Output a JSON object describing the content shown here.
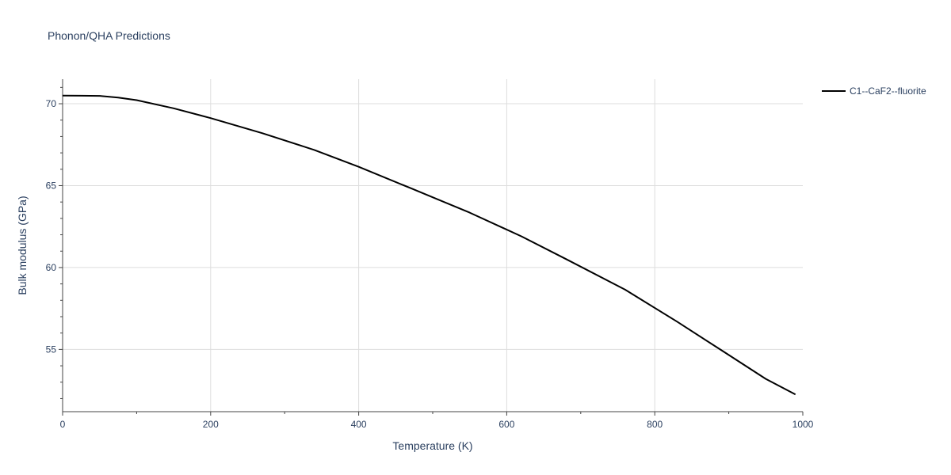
{
  "chart_data": {
    "type": "line",
    "title": "Phonon/QHA Predictions",
    "xlabel": "Temperature (K)",
    "ylabel": "Bulk modulus (GPa)",
    "xlim": [
      0,
      1000
    ],
    "ylim": [
      51.2,
      71.5
    ],
    "x_ticks": [
      0,
      200,
      400,
      600,
      800,
      1000
    ],
    "y_ticks": [
      55,
      60,
      65,
      70
    ],
    "x_tick_labels": [
      "0",
      "200",
      "400",
      "600",
      "800",
      "1000"
    ],
    "y_tick_labels": [
      "55",
      "60",
      "65",
      "70"
    ],
    "grid": true,
    "legend_position": "top-right",
    "series": [
      {
        "name": "C1--CaF2--fluorite",
        "color": "#000000",
        "x": [
          0,
          25,
          50,
          75,
          100,
          150,
          200,
          270,
          340,
          400,
          470,
          550,
          620,
          680,
          760,
          830,
          890,
          950,
          990
        ],
        "y": [
          70.5,
          70.49,
          70.48,
          70.38,
          70.22,
          69.72,
          69.12,
          68.2,
          67.18,
          66.15,
          64.85,
          63.35,
          61.9,
          60.52,
          58.65,
          56.7,
          54.95,
          53.2,
          52.25
        ]
      }
    ]
  }
}
